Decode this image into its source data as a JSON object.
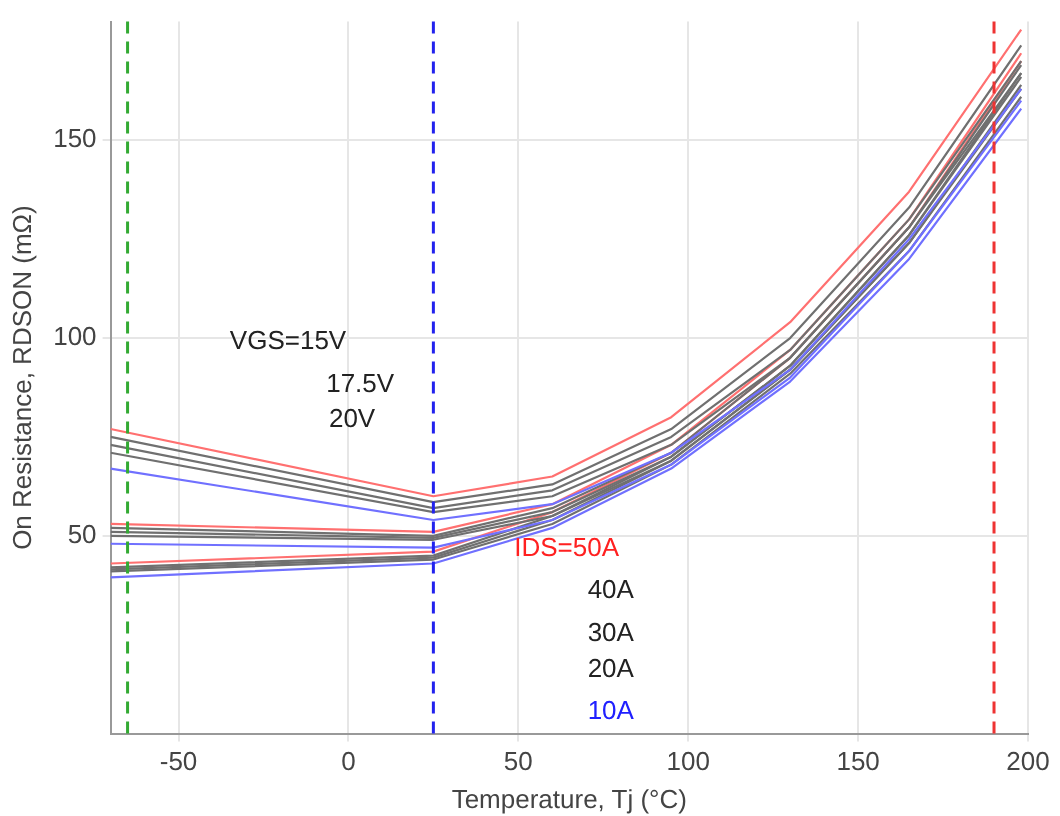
{
  "chart_data": {
    "type": "line",
    "xlabel": "Temperature, Tj (°C)",
    "ylabel": "On Resistance, RDSON (mΩ)",
    "x": [
      -70,
      25,
      60,
      95,
      130,
      165,
      198
    ],
    "xlim": [
      -70,
      200
    ],
    "xticks": [
      -50,
      0,
      50,
      100,
      150,
      200
    ],
    "ylim": [
      0,
      180
    ],
    "yticks": [
      50,
      100,
      150
    ],
    "grid": true,
    "marker": "none",
    "line_style": "solid",
    "series": [
      {
        "color": "#ff7070",
        "values": [
          77,
          60,
          65,
          80,
          104,
          137,
          178
        ]
      },
      {
        "color": "#707070",
        "values": [
          75,
          58.5,
          63,
          77,
          100,
          133,
          174
        ]
      },
      {
        "color": "#707070",
        "values": [
          73,
          57,
          61.5,
          75,
          97,
          130,
          170
        ]
      },
      {
        "color": "#707070",
        "values": [
          71,
          56,
          60,
          73,
          95,
          128,
          167
        ]
      },
      {
        "color": "#7070ff",
        "values": [
          67,
          54,
          58,
          71,
          92,
          125,
          163
        ]
      },
      {
        "color": "#ff7070",
        "values": [
          53,
          51,
          58,
          73,
          97,
          130,
          172
        ]
      },
      {
        "color": "#707070",
        "values": [
          52,
          50,
          57,
          71,
          95,
          128,
          169
        ]
      },
      {
        "color": "#707070",
        "values": [
          51,
          49.5,
          56,
          70,
          93,
          126,
          166
        ]
      },
      {
        "color": "#707070",
        "values": [
          50,
          49,
          55,
          69,
          92,
          124,
          163
        ]
      },
      {
        "color": "#7070ff",
        "values": [
          48,
          47,
          54,
          68,
          90,
          122,
          160
        ]
      },
      {
        "color": "#ff7070",
        "values": [
          43,
          46,
          56,
          71,
          95,
          128,
          170
        ]
      },
      {
        "color": "#707070",
        "values": [
          42,
          45,
          55,
          70,
          93,
          126,
          167
        ]
      },
      {
        "color": "#707070",
        "values": [
          41.5,
          44.5,
          54,
          69,
          92,
          124,
          164
        ]
      },
      {
        "color": "#707070",
        "values": [
          41,
          44,
          53,
          68,
          91,
          122,
          161
        ]
      },
      {
        "color": "#7070ff",
        "values": [
          39.5,
          43,
          52,
          67,
          89,
          120,
          158
        ]
      }
    ],
    "ref_lines": [
      {
        "axis": "x",
        "value": -65,
        "color": "#33aa33",
        "line_style": "dashed"
      },
      {
        "axis": "x",
        "value": 25,
        "color": "#2222ee",
        "line_style": "dashed"
      },
      {
        "axis": "x",
        "value": 190,
        "color": "#ee3333",
        "line_style": "dashed"
      }
    ],
    "annotations": [
      "VGS=15V",
      "17.5V",
      "20V",
      "IDS=50A",
      "40A",
      "30A",
      "20A",
      "10A"
    ]
  }
}
